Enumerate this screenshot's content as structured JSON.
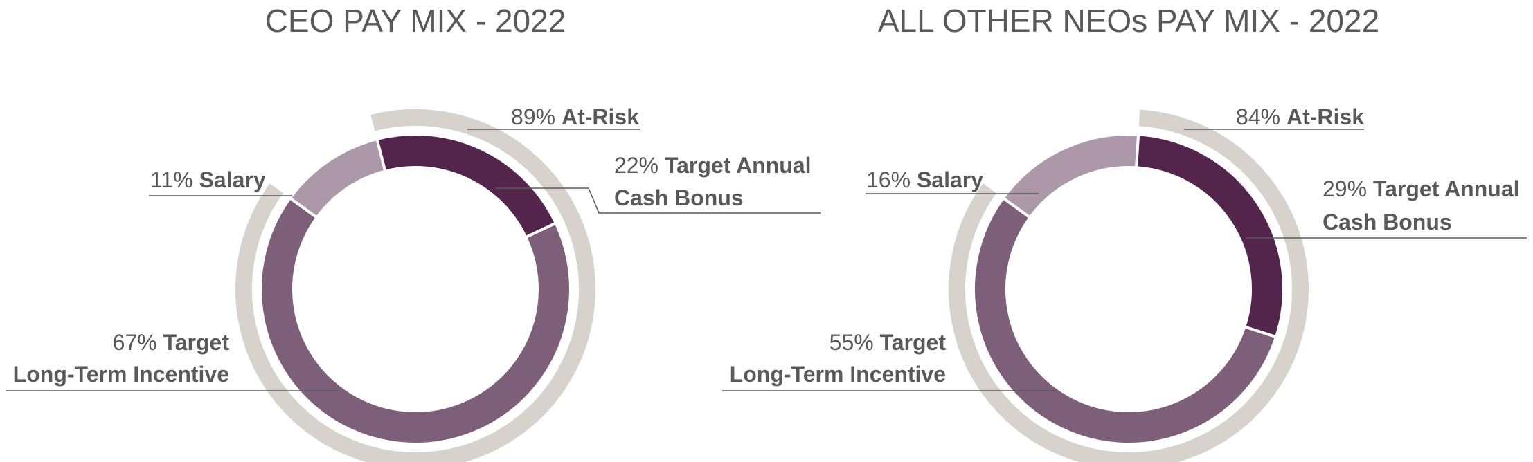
{
  "chart_data": [
    {
      "type": "donut",
      "title": "CEO PAY MIX - 2022",
      "slices": [
        {
          "pct": "22%",
          "label_line1": "Target Annual",
          "label_line2": "Cash Bonus",
          "value": 22,
          "color": "#54254c"
        },
        {
          "pct": "67%",
          "label_line1": "Target",
          "label_line2": "Long-Term Incentive",
          "value": 67,
          "color": "#7e5f7a"
        },
        {
          "pct": "11%",
          "label_line1": "Salary",
          "label_line2": "",
          "value": 11,
          "color": "#ad98aa"
        }
      ],
      "at_risk": {
        "pct": "89%",
        "label": "At-Risk",
        "value": 89,
        "color": "#d7d2cc"
      }
    },
    {
      "type": "donut",
      "title": "ALL OTHER NEOs PAY MIX - 2022",
      "slices": [
        {
          "pct": "29%",
          "label_line1": "Target Annual",
          "label_line2": "Cash Bonus",
          "value": 29,
          "color": "#54254c"
        },
        {
          "pct": "55%",
          "label_line1": "Target",
          "label_line2": "Long-Term Incentive",
          "value": 55,
          "color": "#7e5f7a"
        },
        {
          "pct": "16%",
          "label_line1": "Salary",
          "label_line2": "",
          "value": 16,
          "color": "#ad98aa"
        }
      ],
      "at_risk": {
        "pct": "84%",
        "label": "At-Risk",
        "value": 84,
        "color": "#d7d2cc"
      }
    }
  ]
}
